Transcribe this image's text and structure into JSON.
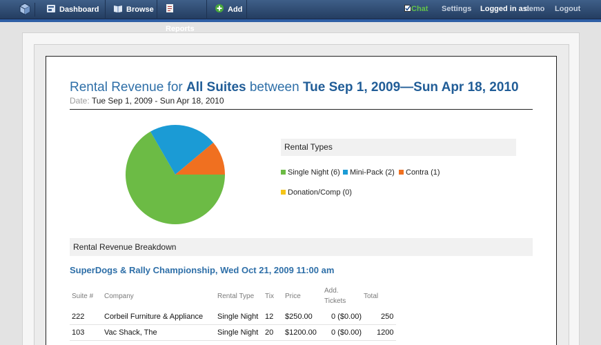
{
  "nav": {
    "items": [
      {
        "label": "Dashboard",
        "icon": "dashboard-icon"
      },
      {
        "label": "Browse",
        "icon": "book-icon"
      },
      {
        "label": "Reports",
        "icon": "reports-icon"
      },
      {
        "label": "Add",
        "icon": "plus-icon"
      }
    ],
    "chat": "Chat",
    "settings": "Settings",
    "logged_in_label": "Logged in as:",
    "user": "demo",
    "logout": "Logout"
  },
  "report": {
    "title_pre": "Rental Revenue for ",
    "title_scope": "All Suites",
    "title_mid": " between ",
    "title_range": "Tue Sep 1, 2009—Sun Apr 18, 2010",
    "date_label": "Date:",
    "date_value": "Tue Sep 1, 2009 - Sun Apr 18, 2010"
  },
  "legend": {
    "heading": "Rental Types",
    "items": [
      {
        "label": "Single Night (6)",
        "color": "#6cbb45"
      },
      {
        "label": "Mini-Pack (2)",
        "color": "#1b9bd5"
      },
      {
        "label": "Contra (1)",
        "color": "#f07020"
      },
      {
        "label": "Donation/Comp (0)",
        "color": "#f5c518"
      }
    ]
  },
  "chart_data": {
    "type": "pie",
    "title": "Rental Types",
    "categories": [
      "Single Night",
      "Mini-Pack",
      "Contra",
      "Donation/Comp"
    ],
    "values": [
      6,
      2,
      1,
      0
    ],
    "colors": [
      "#6cbb45",
      "#1b9bd5",
      "#f07020",
      "#f5c518"
    ]
  },
  "breakdown": {
    "heading": "Rental Revenue Breakdown",
    "event": "SuperDogs & Rally Championship, Wed Oct 21, 2009 11:00 am",
    "columns": [
      "Suite #",
      "Company",
      "Rental Type",
      "Tix",
      "Price",
      "Add. Tickets",
      "Total"
    ],
    "col_add1": "Add.",
    "col_add2": "Tickets",
    "rows": [
      {
        "suite": "222",
        "company": "Corbeil Furniture & Appliance",
        "type": "Single Night",
        "tix": "12",
        "price": "$250.00",
        "add": "0 ($0.00)",
        "total": "250"
      },
      {
        "suite": "103",
        "company": "Vac Shack, The",
        "type": "Single Night",
        "tix": "20",
        "price": "$1200.00",
        "add": "0 ($0.00)",
        "total": "1200"
      }
    ]
  }
}
